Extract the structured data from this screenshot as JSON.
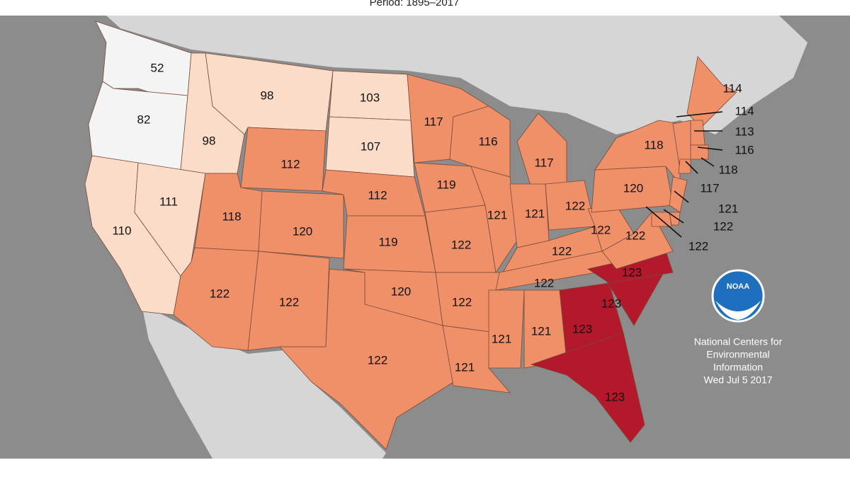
{
  "header": {
    "subtitle": "Period: 1895–2017"
  },
  "map": {
    "values": [
      52,
      82,
      98,
      98,
      103,
      107,
      110,
      111,
      112,
      118,
      120,
      112,
      119,
      122,
      122,
      120,
      122,
      117,
      119,
      122,
      122,
      121,
      116,
      121,
      117,
      121,
      122,
      122,
      122,
      121,
      121,
      123,
      123,
      123,
      123,
      122,
      122,
      120,
      118,
      114,
      114,
      113,
      116,
      118,
      117,
      121,
      122,
      122
    ]
  },
  "logo": {
    "text": "NOAA"
  },
  "credit": {
    "lines": [
      "National Centers for",
      "Environmental",
      "Information",
      "Wed Jul  5 2017"
    ]
  }
}
